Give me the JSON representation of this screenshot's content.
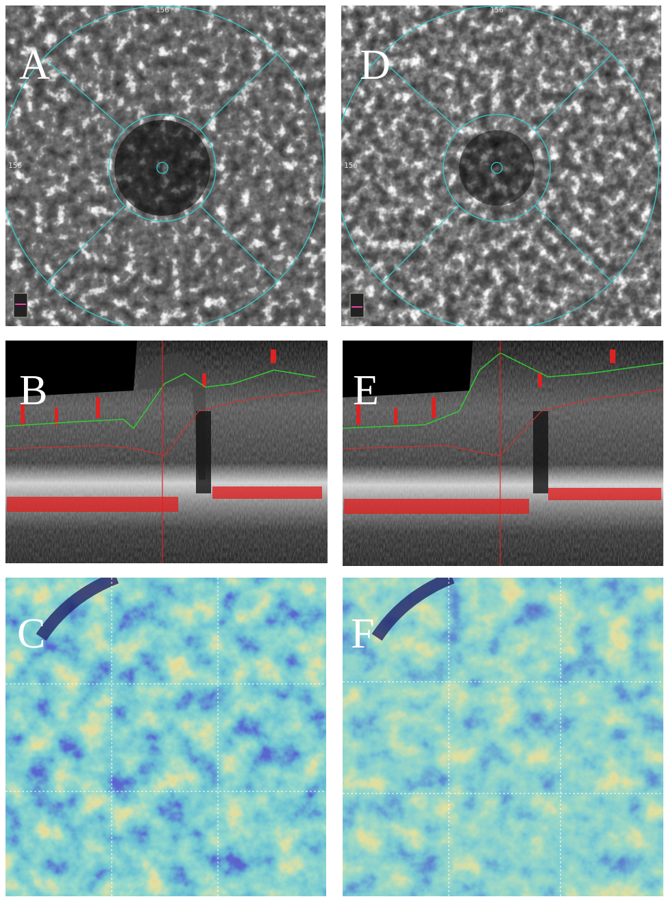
{
  "panels": [
    {
      "label": "A",
      "top_scale": "156",
      "left_scale": "156"
    },
    {
      "label": "B"
    },
    {
      "label": "C"
    },
    {
      "label": "D",
      "top_scale": "156",
      "left_scale": "156"
    },
    {
      "label": "E"
    },
    {
      "label": "F"
    }
  ]
}
